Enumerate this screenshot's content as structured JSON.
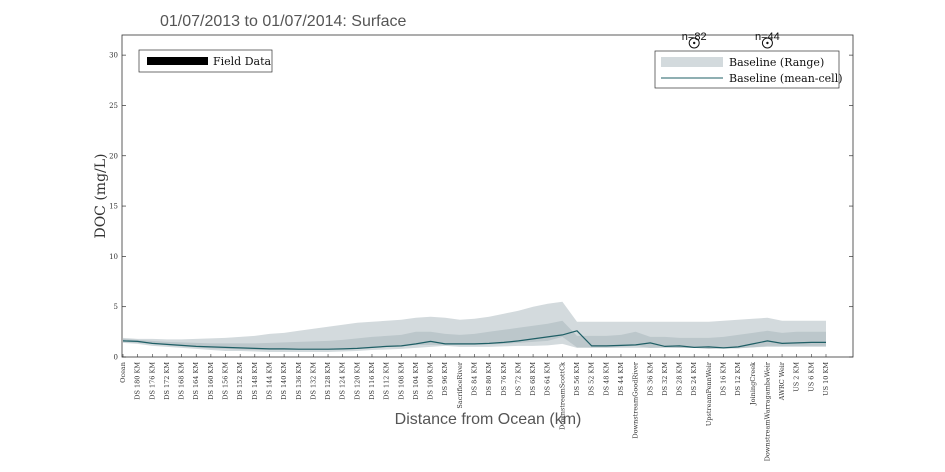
{
  "chart_data": {
    "type": "area",
    "title": "01/07/2013 to 01/07/2014: Surface",
    "xlabel": "Distance from Ocean (km)",
    "ylabel": "DOC (mg/L)",
    "ylim": [
      0,
      32
    ],
    "yticks": [
      0,
      5,
      10,
      15,
      20,
      25,
      30
    ],
    "grid": false,
    "categories": [
      "Ocean",
      "DS 180 KM",
      "DS 176 KM",
      "DS 172 KM",
      "DS 168 KM",
      "DS 164 KM",
      "DS 160 KM",
      "DS 156 KM",
      "DS 152 KM",
      "DS 148 KM",
      "DS 144 KM",
      "DS 140 KM",
      "DS 136 KM",
      "DS 132 KM",
      "DS 128 KM",
      "DS 124 KM",
      "DS 120 KM",
      "DS 116 KM",
      "DS 112 KM",
      "DS 108 KM",
      "DS 104 KM",
      "DS 100 KM",
      "DS 96 KM",
      "SacrificeRiver",
      "DS 84 KM",
      "DS 80 KM",
      "DS 76 KM",
      "DS 72 KM",
      "DS 68 KM",
      "DS 64 KM",
      "DownstreamScottCk",
      "DS 56 KM",
      "DS 52 KM",
      "DS 48 KM",
      "DS 44 KM",
      "DownstreamGoodRiver",
      "DS 36 KM",
      "DS 32 KM",
      "DS 28 KM",
      "DS 24 KM",
      "UpstreamPennWeir",
      "DS 16 KM",
      "DS 12 KM",
      "JoiningCreek",
      "DownstreamWarragambaWeir",
      "AWRC Weir",
      "US 2 KM",
      "US 6 KM",
      "US 10 KM"
    ],
    "series": [
      {
        "name": "Baseline (Range)",
        "type": "range",
        "color": "#d3dadd",
        "lower": [
          1.4,
          1.3,
          1.1,
          1.0,
          0.9,
          0.8,
          0.7,
          0.6,
          0.6,
          0.55,
          0.5,
          0.5,
          0.5,
          0.5,
          0.5,
          0.55,
          0.6,
          0.7,
          0.75,
          0.8,
          0.9,
          1.0,
          1.1,
          1.0,
          1.0,
          1.0,
          1.05,
          1.1,
          1.1,
          1.15,
          1.3,
          0.9,
          0.9,
          0.9,
          0.9,
          0.9,
          0.9,
          0.9,
          0.9,
          0.9,
          0.9,
          0.9,
          0.9,
          0.95,
          1.0,
          1.0,
          1.0,
          1.0,
          1.0
        ],
        "upper": [
          1.9,
          1.8,
          1.8,
          1.75,
          1.75,
          1.8,
          1.85,
          1.9,
          2.0,
          2.1,
          2.3,
          2.4,
          2.6,
          2.8,
          3.0,
          3.2,
          3.4,
          3.5,
          3.6,
          3.7,
          3.9,
          4.0,
          3.9,
          3.7,
          3.8,
          4.0,
          4.3,
          4.6,
          5.0,
          5.3,
          5.5,
          3.5,
          3.5,
          3.5,
          3.5,
          3.5,
          3.5,
          3.5,
          3.5,
          3.5,
          3.5,
          3.6,
          3.7,
          3.8,
          3.9,
          3.6,
          3.6,
          3.6,
          3.6
        ]
      },
      {
        "name": "Baseline (Range)",
        "type": "range-inner",
        "color": "#bcc7cb",
        "lower": [
          1.5,
          1.4,
          1.3,
          1.15,
          1.05,
          0.95,
          0.85,
          0.8,
          0.75,
          0.7,
          0.7,
          0.7,
          0.7,
          0.7,
          0.7,
          0.75,
          0.8,
          0.9,
          1.0,
          1.05,
          1.2,
          1.2,
          1.2,
          1.2,
          1.2,
          1.25,
          1.3,
          1.4,
          1.5,
          1.6,
          2.0,
          0.95,
          0.95,
          0.95,
          1.0,
          1.1,
          0.9,
          0.95,
          0.9,
          0.9,
          0.8,
          0.85,
          0.85,
          0.95,
          1.1,
          1.1,
          1.1,
          1.1,
          1.1
        ],
        "upper": [
          1.8,
          1.7,
          1.6,
          1.5,
          1.45,
          1.4,
          1.35,
          1.35,
          1.35,
          1.35,
          1.4,
          1.45,
          1.5,
          1.55,
          1.6,
          1.7,
          1.85,
          2.0,
          2.1,
          2.2,
          2.5,
          2.5,
          2.3,
          2.2,
          2.3,
          2.5,
          2.7,
          2.9,
          3.1,
          3.3,
          3.6,
          2.1,
          2.1,
          2.1,
          2.2,
          2.5,
          2.0,
          2.0,
          1.9,
          1.9,
          1.9,
          2.0,
          2.2,
          2.4,
          2.6,
          2.4,
          2.5,
          2.5,
          2.5
        ]
      },
      {
        "name": "Baseline (mean-cell)",
        "type": "line",
        "color": "#1f5f66",
        "values": [
          1.6,
          1.55,
          1.35,
          1.25,
          1.15,
          1.05,
          1.0,
          0.95,
          0.9,
          0.85,
          0.8,
          0.8,
          0.78,
          0.78,
          0.78,
          0.8,
          0.85,
          0.95,
          1.05,
          1.1,
          1.3,
          1.55,
          1.3,
          1.3,
          1.3,
          1.35,
          1.45,
          1.6,
          1.8,
          2.0,
          2.2,
          2.6,
          1.1,
          1.1,
          1.15,
          1.2,
          1.4,
          1.05,
          1.1,
          0.95,
          1.0,
          0.9,
          1.0,
          1.3,
          1.6,
          1.35,
          1.4,
          1.45,
          1.45
        ]
      },
      {
        "name": "Field Data",
        "type": "legend-only",
        "color": "#000000"
      }
    ],
    "annotations": [
      {
        "text": "n=82",
        "x": "DS 24 KM",
        "y": 32
      },
      {
        "text": "n=44",
        "x": "DownstreamWarragambaWeir",
        "y": 32
      }
    ],
    "legend_left": "top-left",
    "legend_right": "top-right"
  }
}
